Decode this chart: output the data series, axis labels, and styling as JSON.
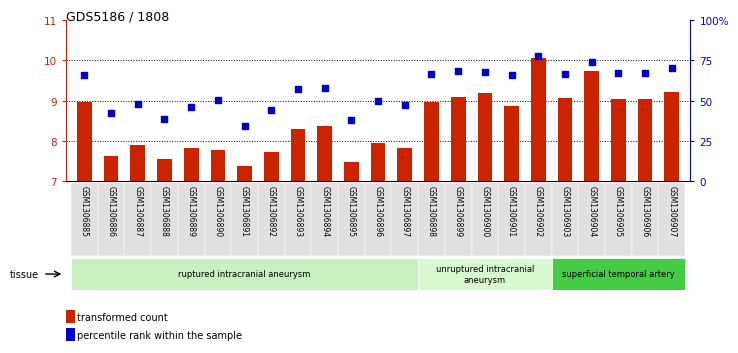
{
  "title": "GDS5186 / 1808",
  "samples": [
    "GSM1306885",
    "GSM1306886",
    "GSM1306887",
    "GSM1306888",
    "GSM1306889",
    "GSM1306890",
    "GSM1306891",
    "GSM1306892",
    "GSM1306893",
    "GSM1306894",
    "GSM1306895",
    "GSM1306896",
    "GSM1306897",
    "GSM1306898",
    "GSM1306899",
    "GSM1306900",
    "GSM1306901",
    "GSM1306902",
    "GSM1306903",
    "GSM1306904",
    "GSM1306905",
    "GSM1306906",
    "GSM1306907"
  ],
  "bar_values": [
    8.98,
    7.63,
    7.9,
    7.55,
    7.83,
    7.77,
    7.38,
    7.72,
    8.3,
    8.38,
    7.48,
    7.95,
    7.83,
    8.97,
    9.08,
    9.18,
    8.88,
    10.05,
    9.07,
    9.73,
    9.04,
    9.03,
    9.22
  ],
  "dot_values": [
    9.63,
    8.7,
    8.92,
    8.55,
    8.85,
    9.02,
    8.37,
    8.77,
    9.28,
    9.32,
    8.52,
    9.0,
    8.9,
    9.65,
    9.73,
    9.7,
    9.63,
    10.1,
    9.67,
    9.95,
    9.68,
    9.68,
    9.8
  ],
  "ylim_left": [
    7,
    11
  ],
  "ylim_right": [
    0,
    100
  ],
  "yticks_left": [
    7,
    8,
    9,
    10,
    11
  ],
  "yticks_right": [
    0,
    25,
    50,
    75,
    100
  ],
  "ytick_labels_right": [
    "0",
    "25",
    "50",
    "75",
    "100%"
  ],
  "bar_color": "#cc2200",
  "dot_color": "#0000cc",
  "group_labels": [
    "ruptured intracranial aneurysm",
    "unruptured intracranial\naneurysm",
    "superficial temporal artery"
  ],
  "group_ranges": [
    [
      0,
      13
    ],
    [
      13,
      18
    ],
    [
      18,
      23
    ]
  ],
  "group_colors": [
    "#c8f0c0",
    "#d8f8d0",
    "#44cc44"
  ],
  "tissue_label": "tissue",
  "legend_bar": "transformed count",
  "legend_dot": "percentile rank within the sample",
  "bg_color": "#ffffff",
  "plot_bg": "#ffffff",
  "xlabel_bg": "#e0e0e0"
}
